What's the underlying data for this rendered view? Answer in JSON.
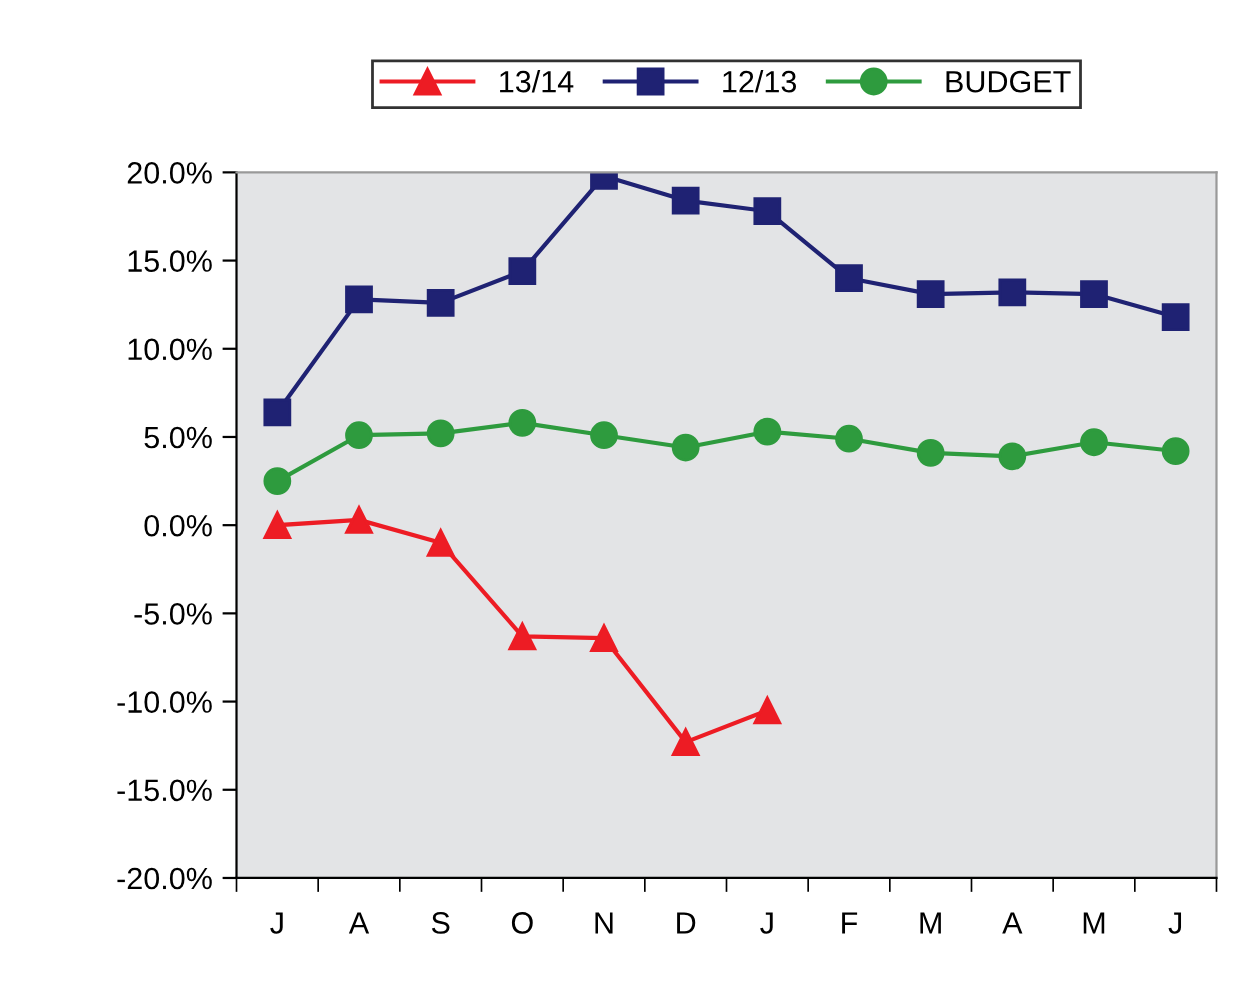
{
  "chart_data": {
    "type": "line",
    "categories": [
      "J",
      "A",
      "S",
      "O",
      "N",
      "D",
      "J",
      "F",
      "M",
      "A",
      "M",
      "J"
    ],
    "series": [
      {
        "name": "13/14",
        "color": "#ed1c24",
        "marker": "triangle",
        "values": [
          0.0,
          0.3,
          -1.0,
          -6.3,
          -6.4,
          -12.3,
          -10.5,
          null,
          null,
          null,
          null,
          null
        ]
      },
      {
        "name": "12/13",
        "color": "#1f2273",
        "marker": "square",
        "values": [
          6.4,
          12.8,
          12.6,
          14.4,
          19.8,
          18.4,
          17.8,
          14.0,
          13.1,
          13.2,
          13.1,
          11.8
        ]
      },
      {
        "name": "BUDGET",
        "color": "#2e9b3e",
        "marker": "circle",
        "values": [
          2.5,
          5.1,
          5.2,
          5.8,
          5.1,
          4.4,
          5.3,
          4.9,
          4.1,
          3.9,
          4.7,
          4.2
        ]
      }
    ],
    "ylim": [
      -20,
      20
    ],
    "yticks": [
      {
        "value": -20,
        "label": "-20.0%"
      },
      {
        "value": -15,
        "label": "-15.0%"
      },
      {
        "value": -10,
        "label": "-10.0%"
      },
      {
        "value": -5,
        "label": "-5.0%"
      },
      {
        "value": 0,
        "label": "0.0%"
      },
      {
        "value": 5,
        "label": "5.0%"
      },
      {
        "value": 10,
        "label": "10.0%"
      },
      {
        "value": 15,
        "label": "15.0%"
      },
      {
        "value": 20,
        "label": "20.0%"
      }
    ],
    "grid": false,
    "legend": "top",
    "line_style": "solid"
  }
}
